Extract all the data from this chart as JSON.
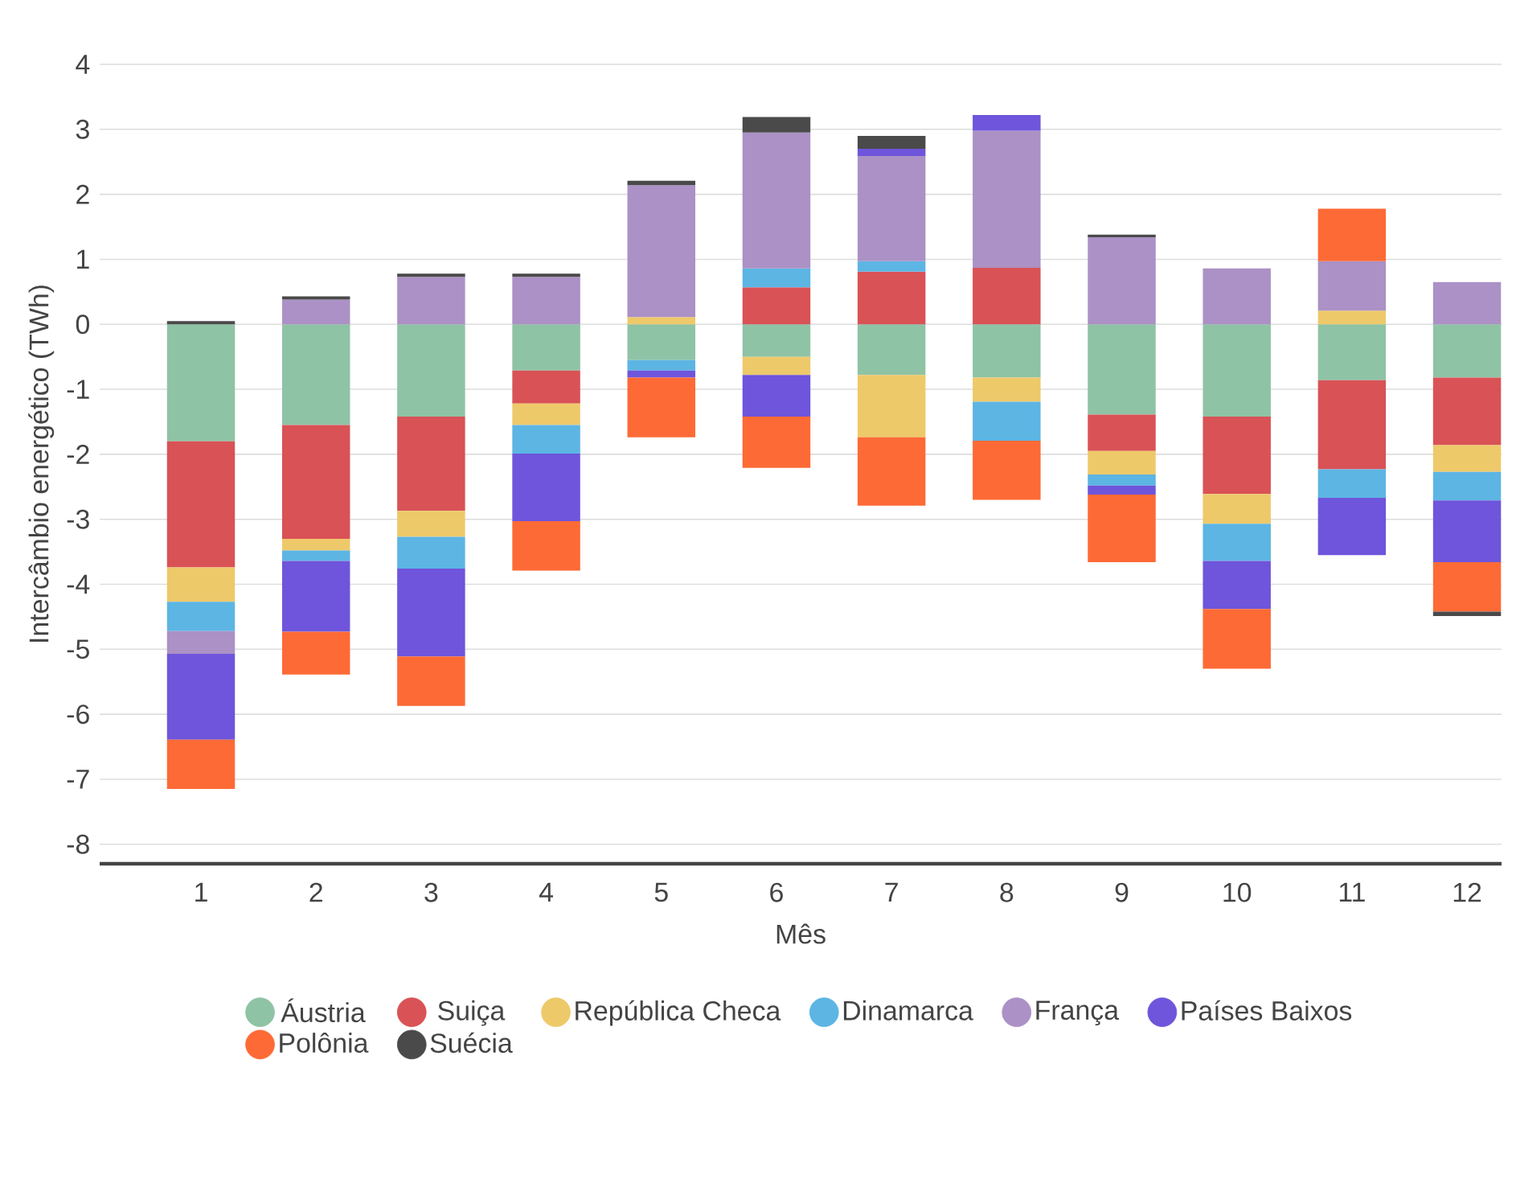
{
  "chart_data": {
    "type": "bar",
    "stacked": true,
    "xlabel": "Mês",
    "ylabel": "Intercâmbio energético (TWh)",
    "categories": [
      "1",
      "2",
      "3",
      "4",
      "5",
      "6",
      "7",
      "8",
      "9",
      "10",
      "11",
      "12"
    ],
    "ylim": [
      -8.3,
      4
    ],
    "yticks": [
      -8,
      -7,
      -6,
      -5,
      -4,
      -3,
      -2,
      -1,
      0,
      1,
      2,
      3,
      4
    ],
    "grid": "y",
    "legend": "bottom",
    "series": [
      {
        "name": "Áustria",
        "color": "#8fc3a5",
        "values": [
          -1.8,
          -1.55,
          -1.42,
          -0.71,
          -0.55,
          -0.5,
          -0.78,
          -0.82,
          -1.39,
          -1.42,
          -0.86,
          -0.82
        ]
      },
      {
        "name": "Suiça",
        "color": "#d95256",
        "values": [
          -1.94,
          -1.75,
          -1.45,
          -0.51,
          null,
          0.57,
          0.81,
          0.87,
          -0.56,
          -1.19,
          -1.37,
          -1.04
        ]
      },
      {
        "name": "República Checa",
        "color": "#eec96a",
        "values": [
          -0.53,
          -0.18,
          -0.4,
          -0.33,
          0.11,
          -0.28,
          -0.96,
          -0.37,
          -0.36,
          -0.46,
          0.21,
          -0.41
        ]
      },
      {
        "name": "Dinamarca",
        "color": "#5db5e3",
        "values": [
          -0.45,
          -0.16,
          -0.49,
          -0.44,
          -0.16,
          0.29,
          0.16,
          -0.6,
          -0.17,
          -0.57,
          -0.44,
          -0.44
        ]
      },
      {
        "name": "França",
        "color": "#ab91c5",
        "values": [
          -0.35,
          0.38,
          0.73,
          0.73,
          2.03,
          2.09,
          1.62,
          2.11,
          1.34,
          0.86,
          0.76,
          0.65
        ]
      },
      {
        "name": "Países Baixos",
        "color": "#6e55db",
        "values": [
          -1.32,
          -1.09,
          -1.35,
          -1.04,
          -0.11,
          -0.64,
          0.11,
          0.24,
          -0.14,
          -0.74,
          -0.88,
          -0.95
        ]
      },
      {
        "name": "Polônia",
        "color": "#fd6a36",
        "values": [
          -0.76,
          -0.66,
          -0.76,
          -0.76,
          -0.92,
          -0.79,
          -1.05,
          -0.91,
          -1.04,
          -0.92,
          0.81,
          -0.76
        ]
      },
      {
        "name": "Suécia",
        "color": "#4a4a4a",
        "values": [
          0.05,
          0.05,
          0.05,
          0.05,
          0.07,
          0.24,
          0.2,
          null,
          0.04,
          null,
          null,
          -0.07
        ]
      }
    ]
  }
}
